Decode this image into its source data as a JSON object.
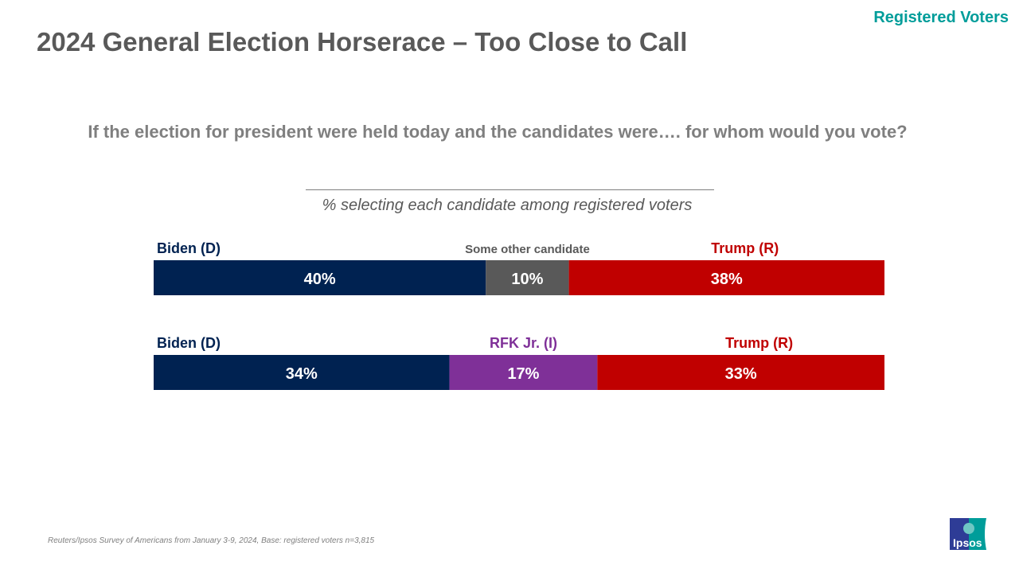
{
  "header": {
    "title": "2024 General Election Horserace – Too Close to Call",
    "tag": "Registered Voters"
  },
  "question": "If the election for president were held today and the candidates were…. for whom would you vote?",
  "footnote": "Reuters/Ipsos Survey of Americans from January 3-9, 2024, Base: registered voters n=3,815",
  "logo": {
    "text": "Ipsos",
    "colors": [
      "#2e3c96",
      "#009d9a"
    ]
  },
  "chart_data": {
    "type": "bar",
    "orientation": "horizontal-stacked",
    "subtitle": "% selecting each candidate among registered voters",
    "rows": [
      {
        "segments": [
          {
            "name": "Biden (D)",
            "value": 40,
            "label": "40%",
            "color": "#002251"
          },
          {
            "name": "Some other candidate",
            "value": 10,
            "label": "10%",
            "color": "#595959"
          },
          {
            "name": "Trump (R)",
            "value": 38,
            "label": "38%",
            "color": "#c00000"
          }
        ]
      },
      {
        "segments": [
          {
            "name": "Biden (D)",
            "value": 34,
            "label": "34%",
            "color": "#002251"
          },
          {
            "name": "RFK Jr. (I)",
            "value": 17,
            "label": "17%",
            "color": "#7f3098"
          },
          {
            "name": "Trump (R)",
            "value": 33,
            "label": "33%",
            "color": "#c00000"
          }
        ]
      }
    ]
  }
}
